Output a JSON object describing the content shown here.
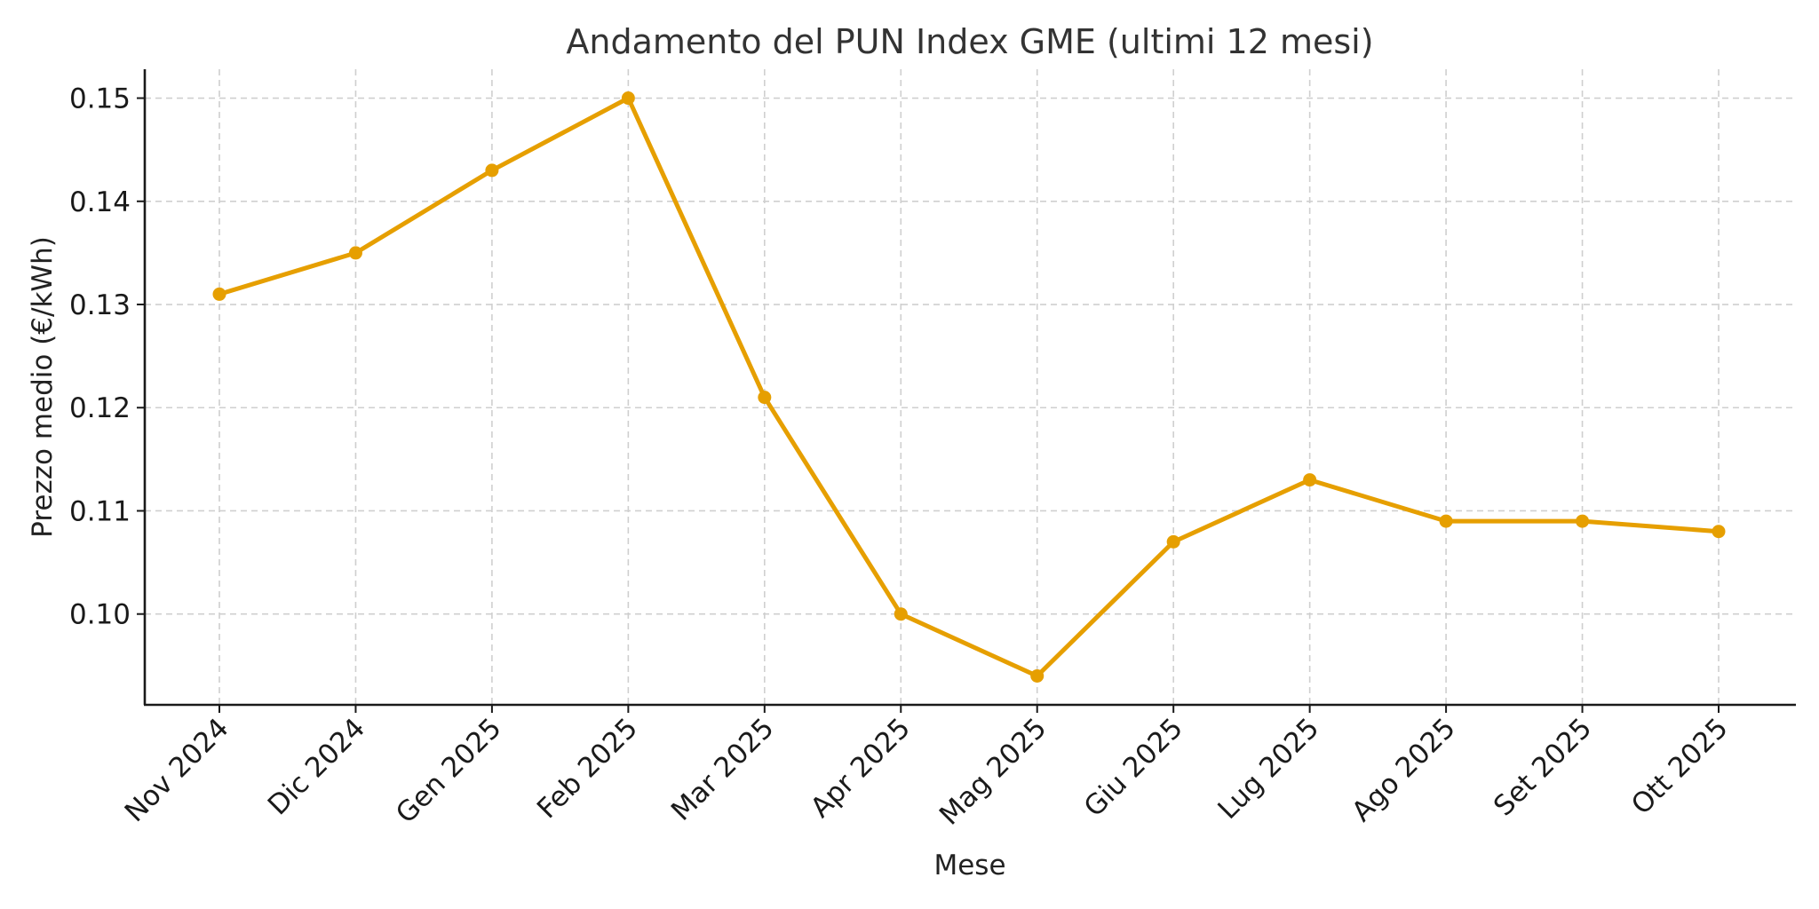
{
  "chart_data": {
    "type": "line",
    "title": "Andamento del PUN Index GME (ultimi 12 mesi)",
    "xlabel": "Mese",
    "ylabel": "Prezzo medio (€/kWh)",
    "categories": [
      "Nov 2024",
      "Dic 2024",
      "Gen 2025",
      "Feb 2025",
      "Mar 2025",
      "Apr 2025",
      "Mag 2025",
      "Giu 2025",
      "Lug 2025",
      "Ago 2025",
      "Set 2025",
      "Ott 2025"
    ],
    "series": [
      {
        "values": [
          0.131,
          0.135,
          0.143,
          0.15,
          0.121,
          0.1,
          0.094,
          0.107,
          0.113,
          0.109,
          0.109,
          0.108
        ],
        "color": "#E69F00",
        "marker": "circle"
      }
    ],
    "yticks": [
      0.1,
      0.11,
      0.12,
      0.13,
      0.14,
      0.15
    ],
    "ytick_labels": [
      "0.10",
      "0.11",
      "0.12",
      "0.13",
      "0.14",
      "0.15"
    ],
    "ylim": [
      0.0912,
      0.1528
    ],
    "grid": true,
    "legend": "none"
  }
}
